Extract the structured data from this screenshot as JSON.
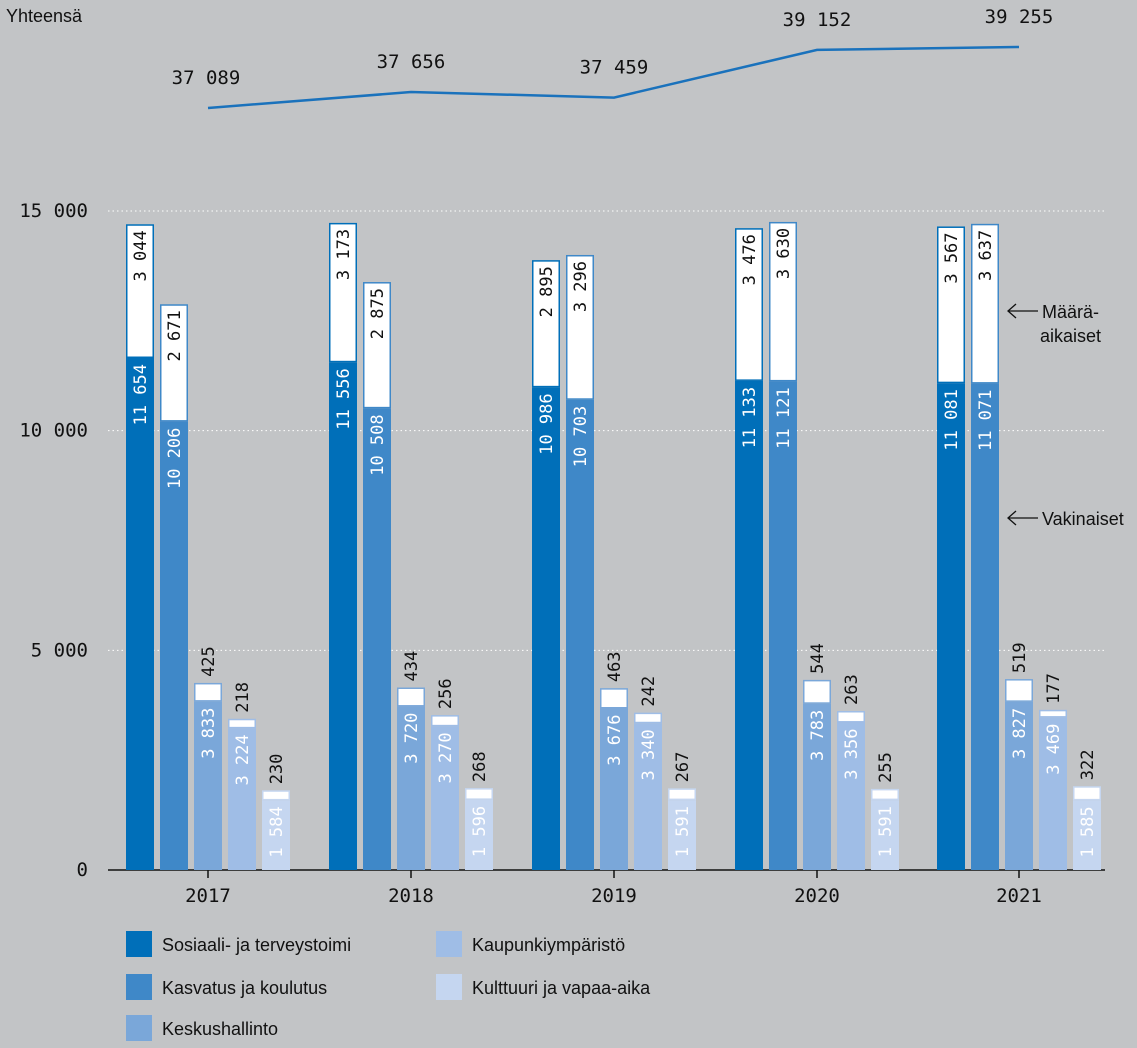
{
  "chart_data": {
    "type": "bar",
    "stacked": true,
    "categories": [
      "2017",
      "2018",
      "2019",
      "2020",
      "2021"
    ],
    "total_label": "Yhteensä",
    "totals": [
      37089,
      37656,
      37459,
      39152,
      39255
    ],
    "ylim": [
      0,
      15000
    ],
    "yticks": [
      0,
      5000,
      10000,
      15000
    ],
    "ytick_labels": [
      "0",
      "5 000",
      "10 000",
      "15 000"
    ],
    "grid": true,
    "annotations": {
      "temporary": [
        "Määrä-",
        "aikaiset"
      ],
      "permanent": "Vakinaiset"
    },
    "series": [
      {
        "name": "Sosiaali- ja terveystoimi",
        "color": "#006fb9",
        "permanent": [
          11654,
          11556,
          10986,
          11133,
          11081
        ],
        "temporary": [
          3044,
          3173,
          2895,
          3476,
          3567
        ]
      },
      {
        "name": "Kasvatus ja koulutus",
        "color": "#3f88c8",
        "permanent": [
          10206,
          10508,
          10703,
          11121,
          11071
        ],
        "temporary": [
          2671,
          2875,
          3296,
          3630,
          3637
        ]
      },
      {
        "name": "Keskushallinto",
        "color": "#7aa7d9",
        "permanent": [
          3833,
          3720,
          3676,
          3783,
          3827
        ],
        "temporary": [
          425,
          434,
          463,
          544,
          519
        ]
      },
      {
        "name": "Kaupunkiympäristö",
        "color": "#9fbde6",
        "permanent": [
          3224,
          3270,
          3340,
          3356,
          3469
        ],
        "temporary": [
          218,
          256,
          242,
          263,
          177
        ]
      },
      {
        "name": "Kulttuuri ja vapaa-aika",
        "color": "#c5d6f0",
        "permanent": [
          1584,
          1596,
          1591,
          1591,
          1585
        ],
        "temporary": [
          230,
          268,
          267,
          255,
          322
        ]
      }
    ],
    "legend_order": [
      0,
      3,
      1,
      4,
      2
    ]
  }
}
